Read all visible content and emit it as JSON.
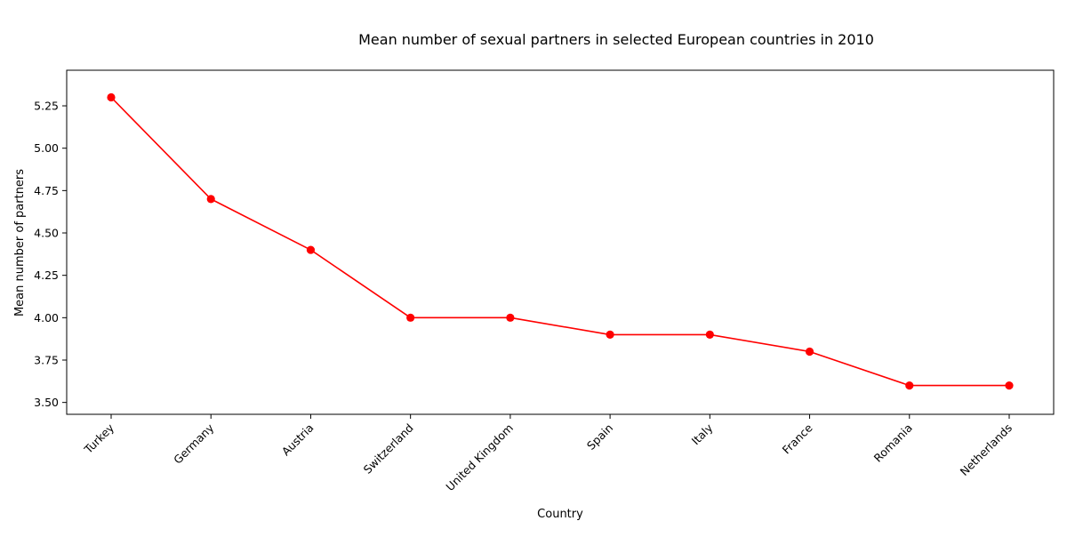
{
  "chart_data": {
    "type": "line",
    "title": "Mean number of sexual partners in selected European countries in 2010",
    "xlabel": "Country",
    "ylabel": "Mean number of partners",
    "categories": [
      "Turkey",
      "Germany",
      "Austria",
      "Switzerland",
      "United Kingdom",
      "Spain",
      "Italy",
      "France",
      "Romania",
      "Netherlands"
    ],
    "series": [
      {
        "values": [
          5.3,
          4.7,
          4.4,
          4.0,
          4.0,
          3.9,
          3.9,
          3.8,
          3.6,
          3.6
        ],
        "color": "#ff0000",
        "marker": "circle"
      }
    ],
    "y_ticks": [
      "3.50",
      "3.75",
      "4.00",
      "4.25",
      "4.50",
      "4.75",
      "5.00",
      "5.25"
    ],
    "ylim": [
      3.43,
      5.46
    ],
    "grid": false,
    "legend": "none"
  }
}
